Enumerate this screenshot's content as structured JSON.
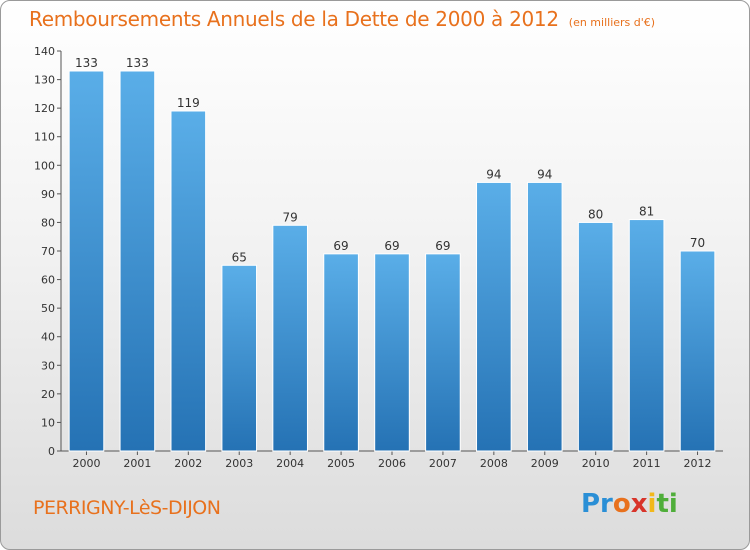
{
  "title_main": "Remboursements Annuels de la Dette de 2000 à 2012",
  "title_unit": "(en milliers d'€)",
  "place": "PERRIGNY-LèS-DIJON",
  "logo_parts": [
    "Pr",
    "o",
    "x",
    "i",
    "ti"
  ],
  "colors": {
    "title": "#e8711d",
    "bar_light": "#5aaee8",
    "bar_dark": "#2572b4"
  },
  "chart_data": {
    "type": "bar",
    "title": "Remboursements Annuels de la Dette de 2000 à 2012",
    "xlabel": "",
    "ylabel": "",
    "categories": [
      "2000",
      "2001",
      "2002",
      "2003",
      "2004",
      "2005",
      "2006",
      "2007",
      "2008",
      "2009",
      "2010",
      "2011",
      "2012"
    ],
    "values": [
      133,
      133,
      119,
      65,
      79,
      69,
      69,
      69,
      94,
      94,
      80,
      81,
      70
    ],
    "ylim": [
      0,
      140
    ],
    "yticks": [
      0,
      10,
      20,
      30,
      40,
      50,
      60,
      70,
      80,
      90,
      100,
      110,
      120,
      130,
      140
    ],
    "grid": false,
    "legend": "none"
  }
}
